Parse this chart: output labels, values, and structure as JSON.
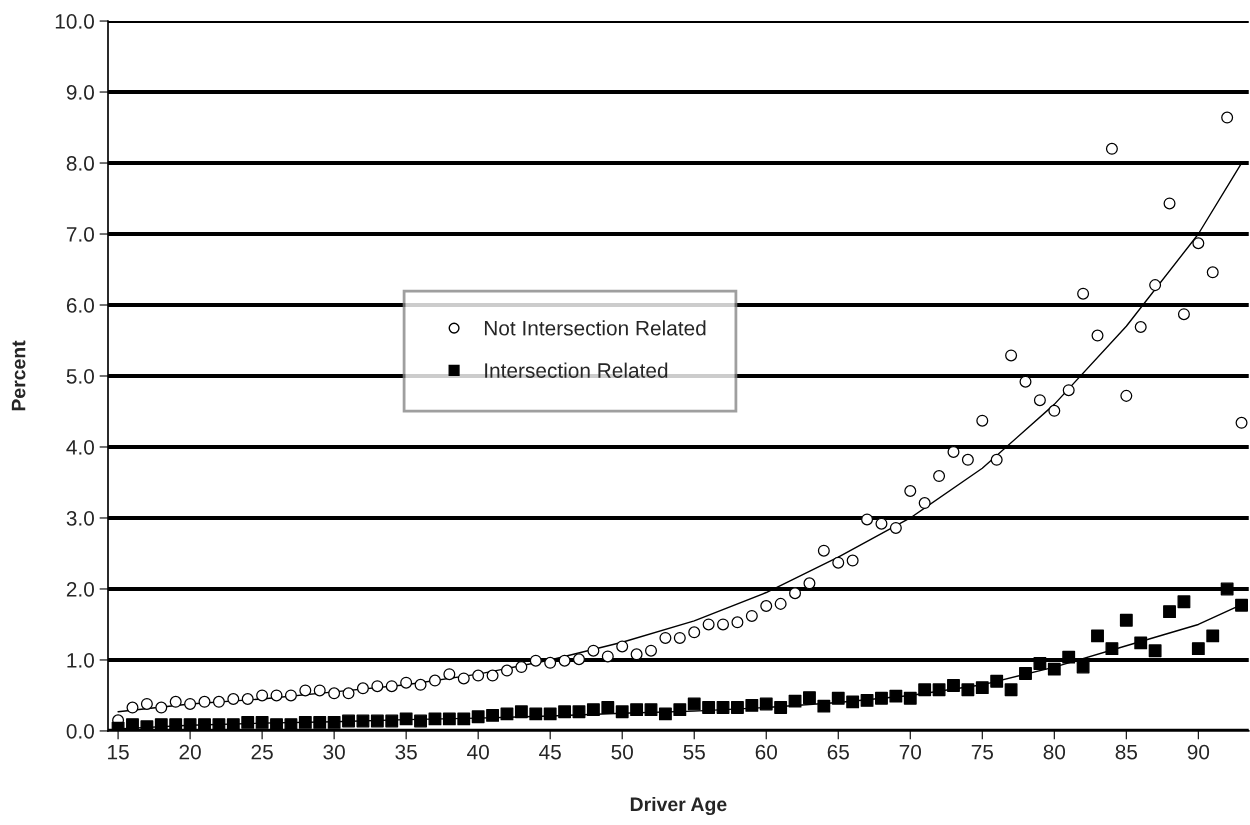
{
  "chart_data": {
    "type": "scatter",
    "xlabel": "Driver Age",
    "ylabel": "Percent",
    "x": [
      15,
      16,
      17,
      18,
      19,
      20,
      21,
      22,
      23,
      24,
      25,
      26,
      27,
      28,
      29,
      30,
      31,
      32,
      33,
      34,
      35,
      36,
      37,
      38,
      39,
      40,
      41,
      42,
      43,
      44,
      45,
      46,
      47,
      48,
      49,
      50,
      51,
      52,
      53,
      54,
      55,
      56,
      57,
      58,
      59,
      60,
      61,
      62,
      63,
      64,
      65,
      66,
      67,
      68,
      69,
      70,
      71,
      72,
      73,
      74,
      75,
      76,
      77,
      78,
      79,
      80,
      81,
      82,
      83,
      84,
      85,
      86,
      87,
      88,
      89,
      90,
      91,
      92,
      93
    ],
    "series": [
      {
        "name": "Not Intersection Related",
        "color": "#000000",
        "marker": "circle",
        "values": [
          0.15,
          0.33,
          0.38,
          0.33,
          0.41,
          0.38,
          0.41,
          0.41,
          0.45,
          0.45,
          0.5,
          0.5,
          0.5,
          0.57,
          0.57,
          0.53,
          0.53,
          0.6,
          0.63,
          0.63,
          0.68,
          0.65,
          0.71,
          0.8,
          0.74,
          0.78,
          0.78,
          0.85,
          0.9,
          0.99,
          0.96,
          0.99,
          1.01,
          1.13,
          1.05,
          1.19,
          1.08,
          1.13,
          1.31,
          1.31,
          1.39,
          1.5,
          1.5,
          1.53,
          1.62,
          1.76,
          1.79,
          1.94,
          2.08,
          2.54,
          2.37,
          2.4,
          2.98,
          2.92,
          2.86,
          3.38,
          3.21,
          3.59,
          3.93,
          3.82,
          4.37,
          3.82,
          5.29,
          4.92,
          4.66,
          4.51,
          4.8,
          6.16,
          5.57,
          8.2,
          4.72,
          5.69,
          6.28,
          7.43,
          5.87,
          6.87,
          6.46,
          8.64,
          4.34
        ]
      },
      {
        "name": "Intersection Related",
        "color": "#000000",
        "marker": "square",
        "values": [
          0.04,
          0.09,
          0.06,
          0.09,
          0.09,
          0.09,
          0.09,
          0.09,
          0.09,
          0.12,
          0.12,
          0.09,
          0.09,
          0.12,
          0.12,
          0.12,
          0.14,
          0.14,
          0.14,
          0.14,
          0.17,
          0.14,
          0.17,
          0.17,
          0.17,
          0.2,
          0.22,
          0.24,
          0.27,
          0.24,
          0.24,
          0.27,
          0.27,
          0.3,
          0.33,
          0.27,
          0.3,
          0.3,
          0.24,
          0.3,
          0.38,
          0.33,
          0.33,
          0.33,
          0.36,
          0.38,
          0.33,
          0.42,
          0.47,
          0.35,
          0.46,
          0.41,
          0.43,
          0.46,
          0.49,
          0.46,
          0.58,
          0.58,
          0.64,
          0.58,
          0.61,
          0.7,
          0.58,
          0.81,
          0.95,
          0.87,
          1.04,
          0.9,
          1.34,
          1.16,
          1.56,
          1.24,
          1.13,
          1.68,
          1.82,
          1.16,
          1.34,
          2.0,
          1.77
        ]
      },
      {
        "type": "line",
        "color": "#000000",
        "x": [
          15,
          20,
          25,
          30,
          35,
          40,
          45,
          50,
          55,
          60,
          65,
          70,
          75,
          80,
          85,
          90,
          93
        ],
        "values": [
          0.27,
          0.38,
          0.45,
          0.55,
          0.65,
          0.8,
          1.0,
          1.25,
          1.55,
          1.95,
          2.45,
          3.0,
          3.7,
          4.6,
          5.7,
          7.0,
          8.0
        ]
      },
      {
        "type": "line",
        "color": "#000000",
        "x": [
          15,
          20,
          25,
          30,
          35,
          40,
          45,
          50,
          55,
          60,
          65,
          70,
          75,
          80,
          85,
          90,
          93
        ],
        "values": [
          0.03,
          0.08,
          0.11,
          0.13,
          0.16,
          0.18,
          0.21,
          0.25,
          0.28,
          0.33,
          0.4,
          0.5,
          0.65,
          0.9,
          1.2,
          1.5,
          1.78
        ]
      }
    ],
    "xlim": [
      14.3,
      93.5
    ],
    "xticks": [
      15,
      20,
      25,
      30,
      35,
      40,
      45,
      50,
      55,
      60,
      65,
      70,
      75,
      80,
      85,
      90
    ],
    "ylim": [
      0,
      10
    ],
    "yticks": [
      {
        "value": 0,
        "label": "0.0"
      },
      {
        "value": 1,
        "label": "1.0"
      },
      {
        "value": 2,
        "label": "2.0"
      },
      {
        "value": 3,
        "label": "3.0"
      },
      {
        "value": 4,
        "label": "4.0"
      },
      {
        "value": 5,
        "label": "5.0"
      },
      {
        "value": 6,
        "label": "6.0"
      },
      {
        "value": 7,
        "label": "7.0"
      },
      {
        "value": 8,
        "label": "8.0"
      },
      {
        "value": 9,
        "label": "9.0"
      },
      {
        "value": 10,
        "label": "10.0"
      }
    ],
    "grid": "y",
    "legend": "center"
  }
}
